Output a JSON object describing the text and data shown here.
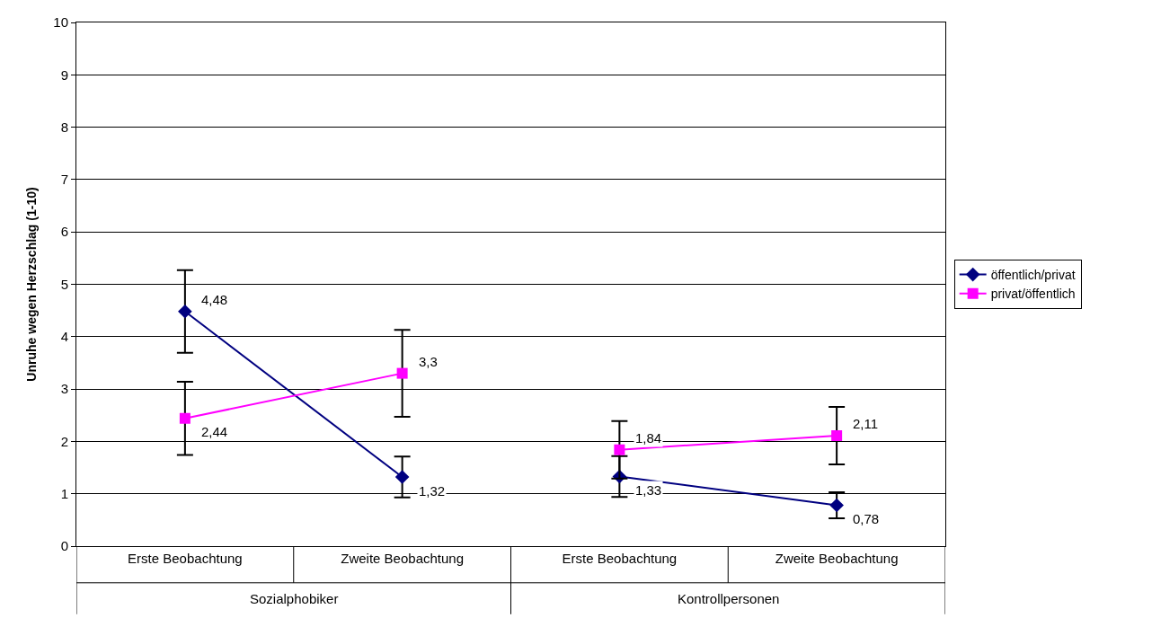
{
  "chart_data": {
    "type": "line",
    "ylabel": "Unruhe wegen Herzschlag (1-10)",
    "categories": [
      "Erste Beobachtung",
      "Zweite Beobachtung",
      "Erste Beobachtung",
      "Zweite Beobachtung"
    ],
    "annotations": [
      "Sozialphobiker",
      "Kontrollpersonen"
    ],
    "series": [
      {
        "name": "öffentlich/privat",
        "color": "#000080",
        "marker": "diamond",
        "values": [
          4.48,
          1.32,
          1.33,
          0.78
        ],
        "value_labels": [
          "4,48",
          "1,32",
          "1,33",
          "0,78"
        ],
        "errors": [
          0.79,
          0.39,
          0.39,
          0.25
        ]
      },
      {
        "name": "privat/öffentlich",
        "color": "#ff00ff",
        "marker": "square",
        "values": [
          2.44,
          3.3,
          1.84,
          2.11
        ],
        "value_labels": [
          "2,44",
          "3,3",
          "1,84",
          "2,11"
        ],
        "errors": [
          0.7,
          0.83,
          0.55,
          0.55
        ]
      }
    ],
    "ylim": [
      0,
      10
    ],
    "yticks": [
      0,
      1,
      2,
      3,
      4,
      5,
      6,
      7,
      8,
      9,
      10
    ],
    "grid": "y",
    "legend": "right"
  }
}
